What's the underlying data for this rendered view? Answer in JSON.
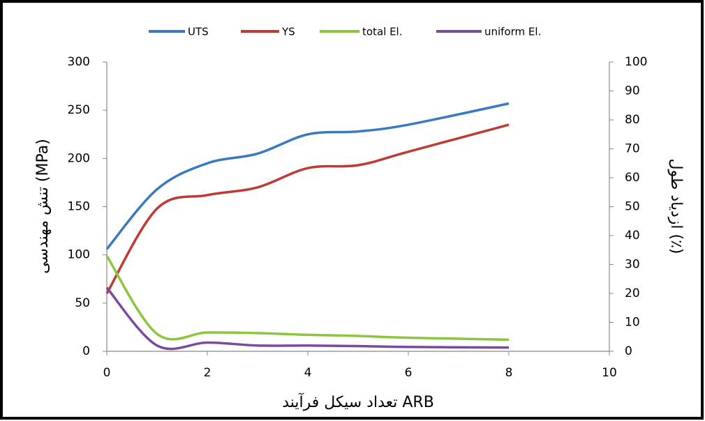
{
  "chart_data": {
    "type": "line",
    "x": [
      0,
      1,
      2,
      3,
      4,
      5,
      6,
      8
    ],
    "series": [
      {
        "name": "UTS",
        "color": "#3a78c2",
        "values": [
          106,
          168,
          195,
          205,
          225,
          228,
          235,
          257
        ]
      },
      {
        "name": "YS",
        "color": "#be3a34",
        "values": [
          60,
          148,
          162,
          170,
          190,
          193,
          207,
          235
        ]
      },
      {
        "name": "total El.",
        "color": "#8cc540",
        "axis": "y2",
        "values": [
          33,
          6,
          6.5,
          6.3,
          5.7,
          5.3,
          4.7,
          4
        ]
      },
      {
        "name": "uniform El.",
        "color": "#7a4a9e",
        "axis": "y2",
        "values": [
          22,
          2,
          3,
          2,
          2,
          1.8,
          1.5,
          1.3
        ]
      }
    ],
    "xlabel": "تعداد سیکل فرآیند ARB",
    "ylabel": "تنش مهندسی (MPa)",
    "y2label": "ازدیاد طول (٪)",
    "xlim": [
      0,
      10
    ],
    "xticks": [
      0,
      2,
      4,
      6,
      8,
      10
    ],
    "ylim": [
      0,
      300
    ],
    "yticks": [
      0,
      50,
      100,
      150,
      200,
      250,
      300
    ],
    "y2lim": [
      0,
      100
    ],
    "y2ticks": [
      0,
      10,
      20,
      30,
      40,
      50,
      60,
      70,
      80,
      90,
      100
    ],
    "legend": "top",
    "smooth": true
  }
}
